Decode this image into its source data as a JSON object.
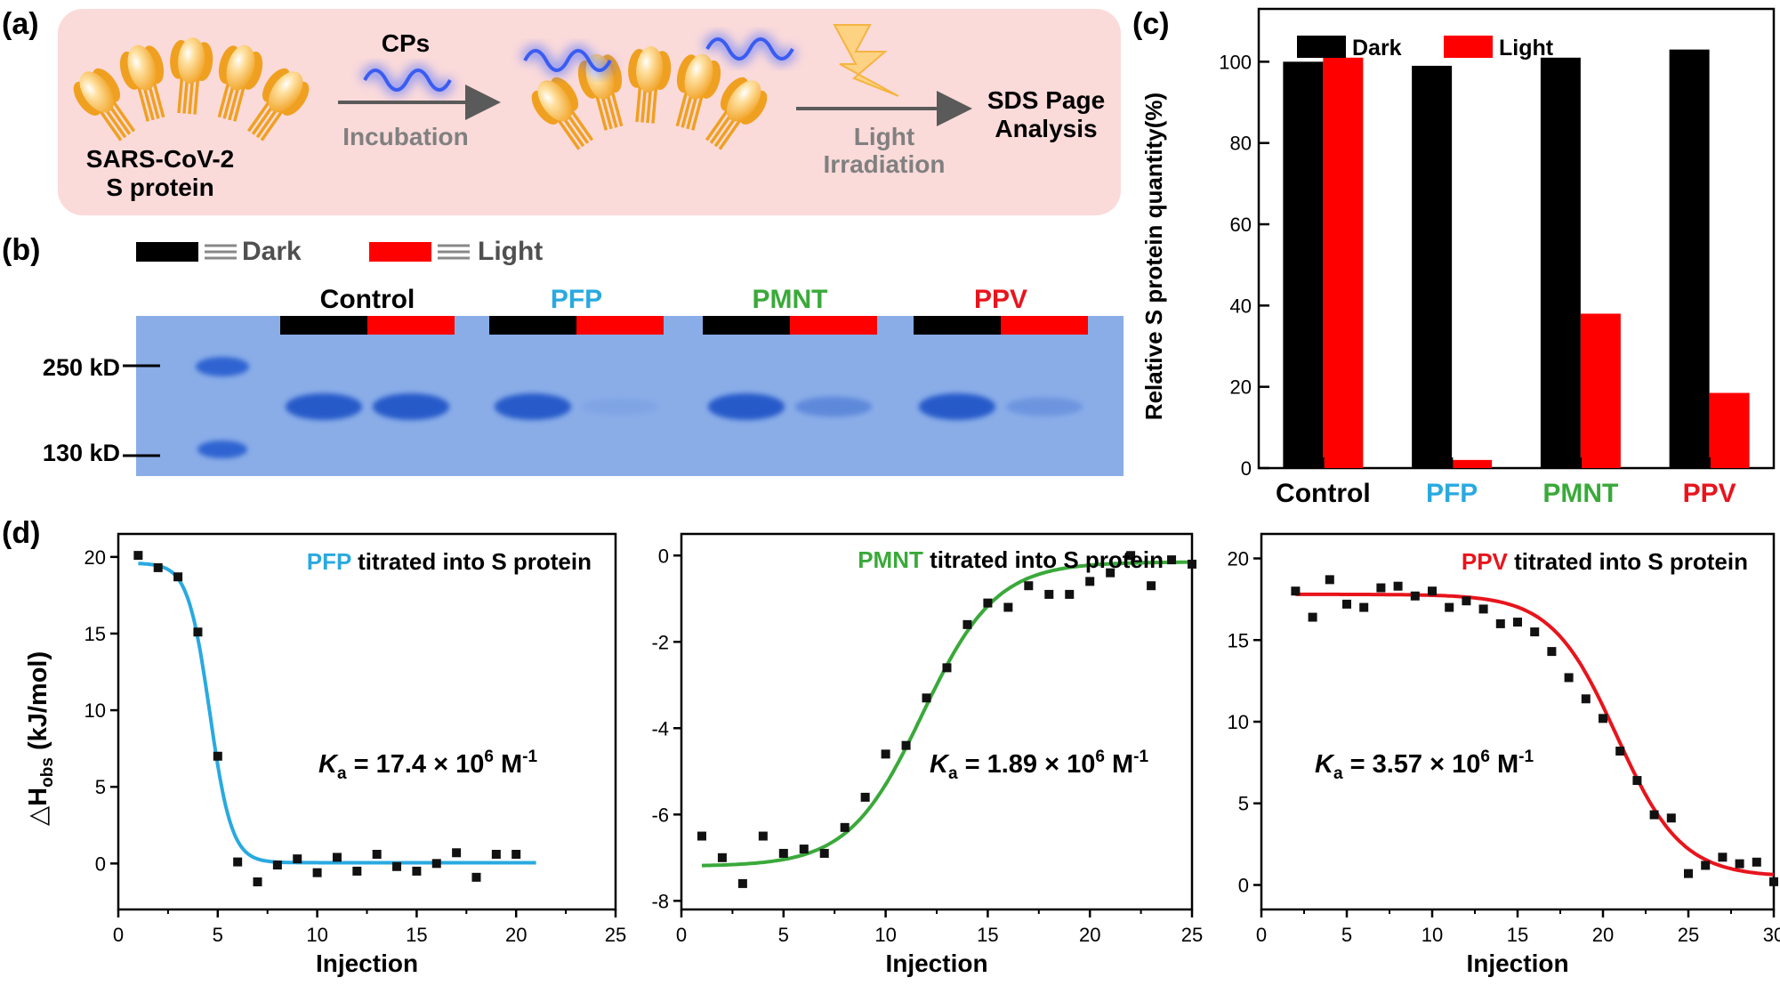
{
  "panels": {
    "a": "(a)",
    "b": "(b)",
    "c": "(c)",
    "d": "(d)"
  },
  "scheme": {
    "protein_label_1": "SARS-CoV-2",
    "protein_label_2": "S protein",
    "cps_label": "CPs",
    "step1": "Incubation",
    "step2_line1": "Light",
    "step2_line2": "Irradiation",
    "result_line1": "SDS Page",
    "result_line2": "Analysis"
  },
  "gel": {
    "legend_dark": "Dark",
    "legend_light": "Light",
    "marker_250": "250 kD",
    "marker_130": "130 kD",
    "groups": [
      {
        "name": "Control",
        "color": "#000000",
        "dark_band_intensity": 1.0,
        "light_band_intensity": 1.0
      },
      {
        "name": "PFP",
        "color": "#29a9e0",
        "dark_band_intensity": 0.99,
        "light_band_intensity": 0.05
      },
      {
        "name": "PMNT",
        "color": "#3aa93a",
        "dark_band_intensity": 1.0,
        "light_band_intensity": 0.4
      },
      {
        "name": "PPV",
        "color": "#e8141c",
        "dark_band_intensity": 1.0,
        "light_band_intensity": 0.25
      }
    ]
  },
  "colors": {
    "dark": "#000000",
    "light": "#ff0000",
    "pfp": "#29a9e0",
    "pmnt": "#3aa93a",
    "ppv": "#e8141c",
    "gel_bg": "#8fb2ea",
    "scheme_bg": "#fbdada"
  },
  "chart_data": [
    {
      "id": "c",
      "type": "bar",
      "categories": [
        "Control",
        "PFP",
        "PMNT",
        "PPV"
      ],
      "category_colors": [
        "#000000",
        "#29a9e0",
        "#3aa93a",
        "#e8141c"
      ],
      "series": [
        {
          "name": "Dark",
          "values": [
            100,
            99,
            101,
            103
          ],
          "color": "#000000"
        },
        {
          "name": "Light",
          "values": [
            101,
            2,
            38,
            18.5
          ],
          "color": "#ff0000"
        }
      ],
      "ylabel": "Relative S protein quantity(%)",
      "ylim": [
        0,
        113
      ],
      "yticks": [
        0,
        20,
        40,
        60,
        80,
        100
      ],
      "legend": "top-left"
    },
    {
      "id": "d1",
      "type": "scatter",
      "title_prefix": "PFP",
      "title_suffix": " titrated into S protein",
      "title_color": "#29a9e0",
      "ka_symbol": "K",
      "ka_sub": "a",
      "ka_eq": " = 17.4 × 10",
      "ka_exp": "6",
      "ka_unit": " M",
      "ka_unit_exp": "-1",
      "ylabel_main": "△H",
      "ylabel_sub": "obs",
      "ylabel_unit": " (kJ/mol)",
      "xlabel": "Injection",
      "xlim": [
        0,
        25
      ],
      "ylim": [
        -3,
        21.5
      ],
      "xticks": [
        0,
        5,
        10,
        15,
        20,
        25
      ],
      "yticks": [
        0,
        5,
        10,
        15,
        20
      ],
      "points": [
        [
          1,
          20.1
        ],
        [
          2,
          19.3
        ],
        [
          3,
          18.7
        ],
        [
          4,
          15.1
        ],
        [
          5,
          7.0
        ],
        [
          6,
          0.1
        ],
        [
          7,
          -1.2
        ],
        [
          8,
          -0.1
        ],
        [
          9,
          0.3
        ],
        [
          10,
          -0.6
        ],
        [
          11,
          0.4
        ],
        [
          12,
          -0.5
        ],
        [
          13,
          0.6
        ],
        [
          14,
          -0.2
        ],
        [
          15,
          -0.5
        ],
        [
          16,
          0.0
        ],
        [
          17,
          0.7
        ],
        [
          18,
          -0.9
        ],
        [
          19,
          0.6
        ],
        [
          20,
          0.6
        ]
      ],
      "fit": {
        "model": "sigmoid",
        "top": 19.6,
        "bottom": 0.05,
        "mid": 4.6,
        "slope": 0.55,
        "x_start": 1,
        "x_end": 21,
        "color": "#29a9e0"
      }
    },
    {
      "id": "d2",
      "type": "scatter",
      "title_prefix": "PMNT",
      "title_suffix": " titrated into S protein",
      "title_color": "#3aa93a",
      "ka_symbol": "K",
      "ka_sub": "a",
      "ka_eq": " = 1.89 × 10",
      "ka_exp": "6",
      "ka_unit": " M",
      "ka_unit_exp": "-1",
      "xlabel": "Injection",
      "xlim": [
        0,
        25
      ],
      "ylim": [
        -8.2,
        0.5
      ],
      "xticks": [
        0,
        5,
        10,
        15,
        20,
        25
      ],
      "yticks": [
        0,
        -2,
        -4,
        -6,
        -8
      ],
      "points": [
        [
          1,
          -6.5
        ],
        [
          2,
          -7.0
        ],
        [
          3,
          -7.6
        ],
        [
          4,
          -6.5
        ],
        [
          5,
          -6.9
        ],
        [
          6,
          -6.8
        ],
        [
          7,
          -6.9
        ],
        [
          8,
          -6.3
        ],
        [
          9,
          -5.6
        ],
        [
          10,
          -4.6
        ],
        [
          11,
          -4.4
        ],
        [
          12,
          -3.3
        ],
        [
          13,
          -2.6
        ],
        [
          14,
          -1.6
        ],
        [
          15,
          -1.1
        ],
        [
          16,
          -1.2
        ],
        [
          17,
          -0.7
        ],
        [
          18,
          -0.9
        ],
        [
          19,
          -0.9
        ],
        [
          20,
          -0.6
        ],
        [
          21,
          -0.4
        ],
        [
          22,
          0.0
        ],
        [
          23,
          -0.7
        ],
        [
          24,
          -0.1
        ],
        [
          25,
          -0.2
        ]
      ],
      "fit": {
        "model": "sigmoid",
        "top": -7.2,
        "bottom": -0.15,
        "mid": 11.8,
        "slope": 1.8,
        "x_start": 1,
        "x_end": 25,
        "color": "#3aa93a"
      }
    },
    {
      "id": "d3",
      "type": "scatter",
      "title_prefix": "PPV",
      "title_suffix": " titrated into S protein",
      "title_color": "#e8141c",
      "ka_symbol": "K",
      "ka_sub": "a",
      "ka_eq": " = 3.57 × 10",
      "ka_exp": "6",
      "ka_unit": " M",
      "ka_unit_exp": "-1",
      "xlabel": "Injection",
      "xlim": [
        0,
        30
      ],
      "ylim": [
        -1.5,
        21.5
      ],
      "xticks": [
        0,
        5,
        10,
        15,
        20,
        25,
        30
      ],
      "yticks": [
        0,
        5,
        10,
        15,
        20
      ],
      "points": [
        [
          2,
          18.0
        ],
        [
          3,
          16.4
        ],
        [
          4,
          18.7
        ],
        [
          5,
          17.2
        ],
        [
          6,
          17.0
        ],
        [
          7,
          18.2
        ],
        [
          8,
          18.3
        ],
        [
          9,
          17.7
        ],
        [
          10,
          18.0
        ],
        [
          11,
          17.0
        ],
        [
          12,
          17.4
        ],
        [
          13,
          16.9
        ],
        [
          14,
          16.0
        ],
        [
          15,
          16.1
        ],
        [
          16,
          15.5
        ],
        [
          17,
          14.3
        ],
        [
          18,
          12.7
        ],
        [
          19,
          11.4
        ],
        [
          20,
          10.2
        ],
        [
          21,
          8.2
        ],
        [
          22,
          6.4
        ],
        [
          23,
          4.3
        ],
        [
          24,
          4.1
        ],
        [
          25,
          0.7
        ],
        [
          26,
          1.2
        ],
        [
          27,
          1.7
        ],
        [
          28,
          1.3
        ],
        [
          29,
          1.4
        ],
        [
          30,
          0.2
        ]
      ],
      "fit": {
        "model": "sigmoid",
        "top": 17.8,
        "bottom": 0.5,
        "mid": 20.8,
        "slope": 1.9,
        "x_start": 2,
        "x_end": 30,
        "color": "#e8141c"
      }
    }
  ]
}
